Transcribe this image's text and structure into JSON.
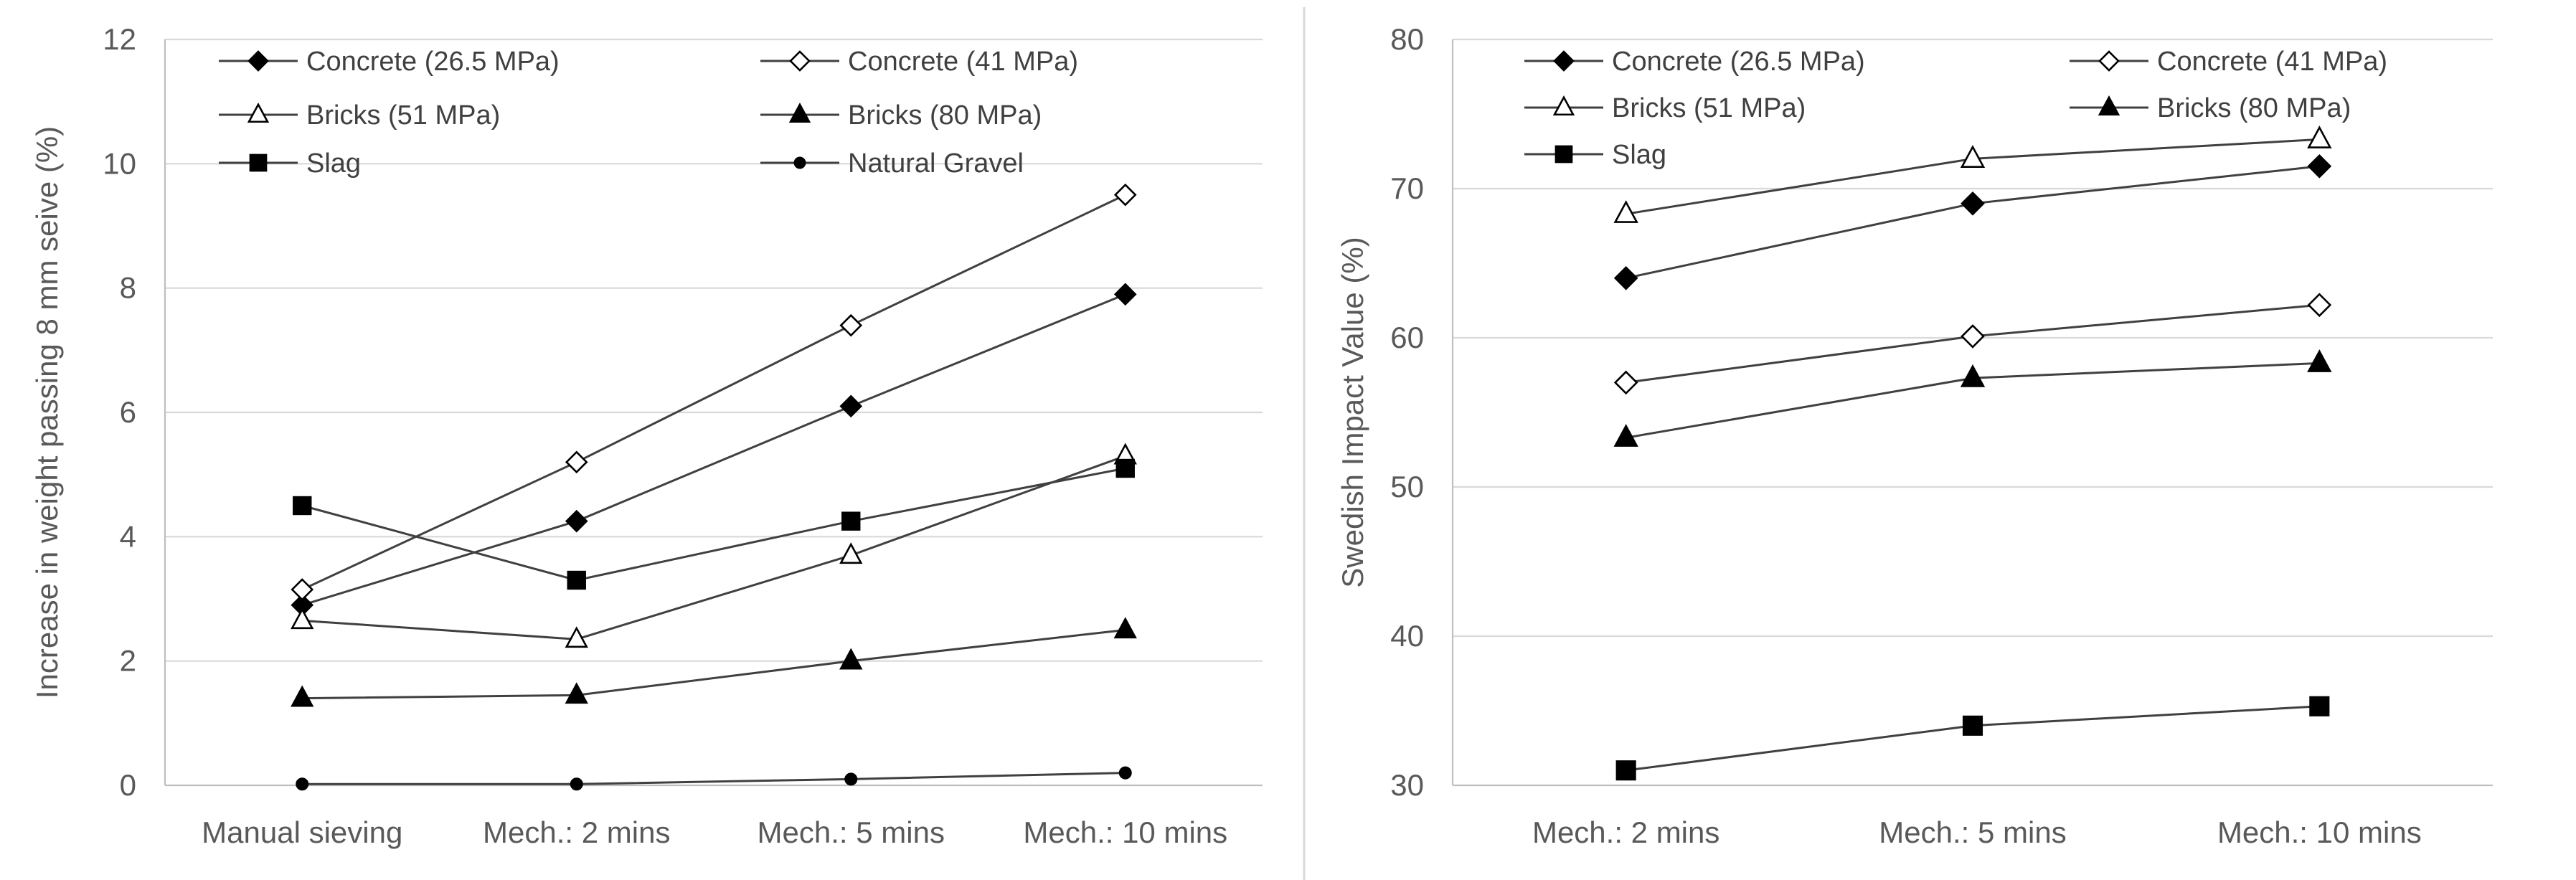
{
  "chart_data": [
    {
      "type": "line",
      "title": "",
      "xlabel": "",
      "ylabel": "Increase in weight passing 8 mm seive (%)",
      "ylim": [
        0,
        12
      ],
      "yticks": [
        "0",
        "2",
        "4",
        "6",
        "8",
        "10",
        "12"
      ],
      "categories": [
        "Manual sieving",
        "Mech.: 2 mins",
        "Mech.: 5 mins",
        "Mech.: 10 mins"
      ],
      "legend_position": "top",
      "series": [
        {
          "name": "Concrete (26.5 MPa)",
          "marker": "diamond-filled",
          "values": [
            2.9,
            4.25,
            6.1,
            7.9
          ]
        },
        {
          "name": "Concrete (41 MPa)",
          "marker": "diamond-open",
          "values": [
            3.15,
            5.2,
            7.4,
            9.5
          ]
        },
        {
          "name": "Bricks (51 MPa)",
          "marker": "triangle-open",
          "values": [
            2.65,
            2.35,
            3.7,
            5.3
          ]
        },
        {
          "name": "Bricks (80 MPa)",
          "marker": "triangle-filled",
          "values": [
            1.4,
            1.45,
            2.0,
            2.5
          ]
        },
        {
          "name": "Slag",
          "marker": "square-filled",
          "values": [
            4.5,
            3.3,
            4.25,
            5.1
          ]
        },
        {
          "name": "Natural Gravel",
          "marker": "circle-filled",
          "values": [
            0.02,
            0.02,
            0.1,
            0.2
          ]
        }
      ]
    },
    {
      "type": "line",
      "title": "",
      "xlabel": "",
      "ylabel": "Swedish Impact Value (%)",
      "ylim": [
        30,
        80
      ],
      "yticks": [
        "30",
        "40",
        "50",
        "60",
        "70",
        "80"
      ],
      "categories": [
        "Mech.: 2 mins",
        "Mech.: 5 mins",
        "Mech.: 10 mins"
      ],
      "legend_position": "top",
      "series": [
        {
          "name": "Concrete (26.5 MPa)",
          "marker": "diamond-filled",
          "values": [
            64.0,
            69.0,
            71.5
          ]
        },
        {
          "name": "Concrete (41 MPa)",
          "marker": "diamond-open",
          "values": [
            57.0,
            60.1,
            62.2
          ]
        },
        {
          "name": "Bricks (51 MPa)",
          "marker": "triangle-open",
          "values": [
            68.3,
            72.0,
            73.3
          ]
        },
        {
          "name": "Bricks (80 MPa)",
          "marker": "triangle-filled",
          "values": [
            53.3,
            57.3,
            58.3
          ]
        },
        {
          "name": "Slag",
          "marker": "square-filled",
          "values": [
            31.0,
            34.0,
            35.3
          ]
        }
      ]
    }
  ]
}
